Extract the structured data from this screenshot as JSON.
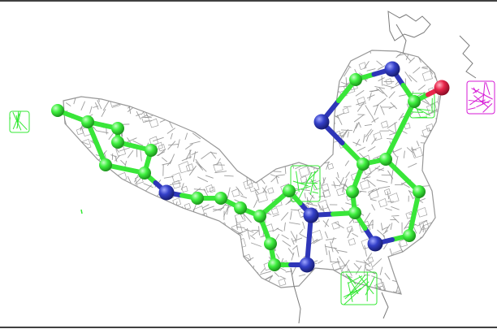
{
  "scene": {
    "background": "#ffffff",
    "frame_color": "#000000",
    "colors": {
      "density_mesh": "#8c8c8c",
      "ligand_carbon": "#39e639",
      "nitrogen": "#2e36b8",
      "oxygen": "#e8264b",
      "difference_positive": "#35e835",
      "difference_negative": "#d61ad6",
      "protein_wire": "#7a7a7a"
    }
  }
}
